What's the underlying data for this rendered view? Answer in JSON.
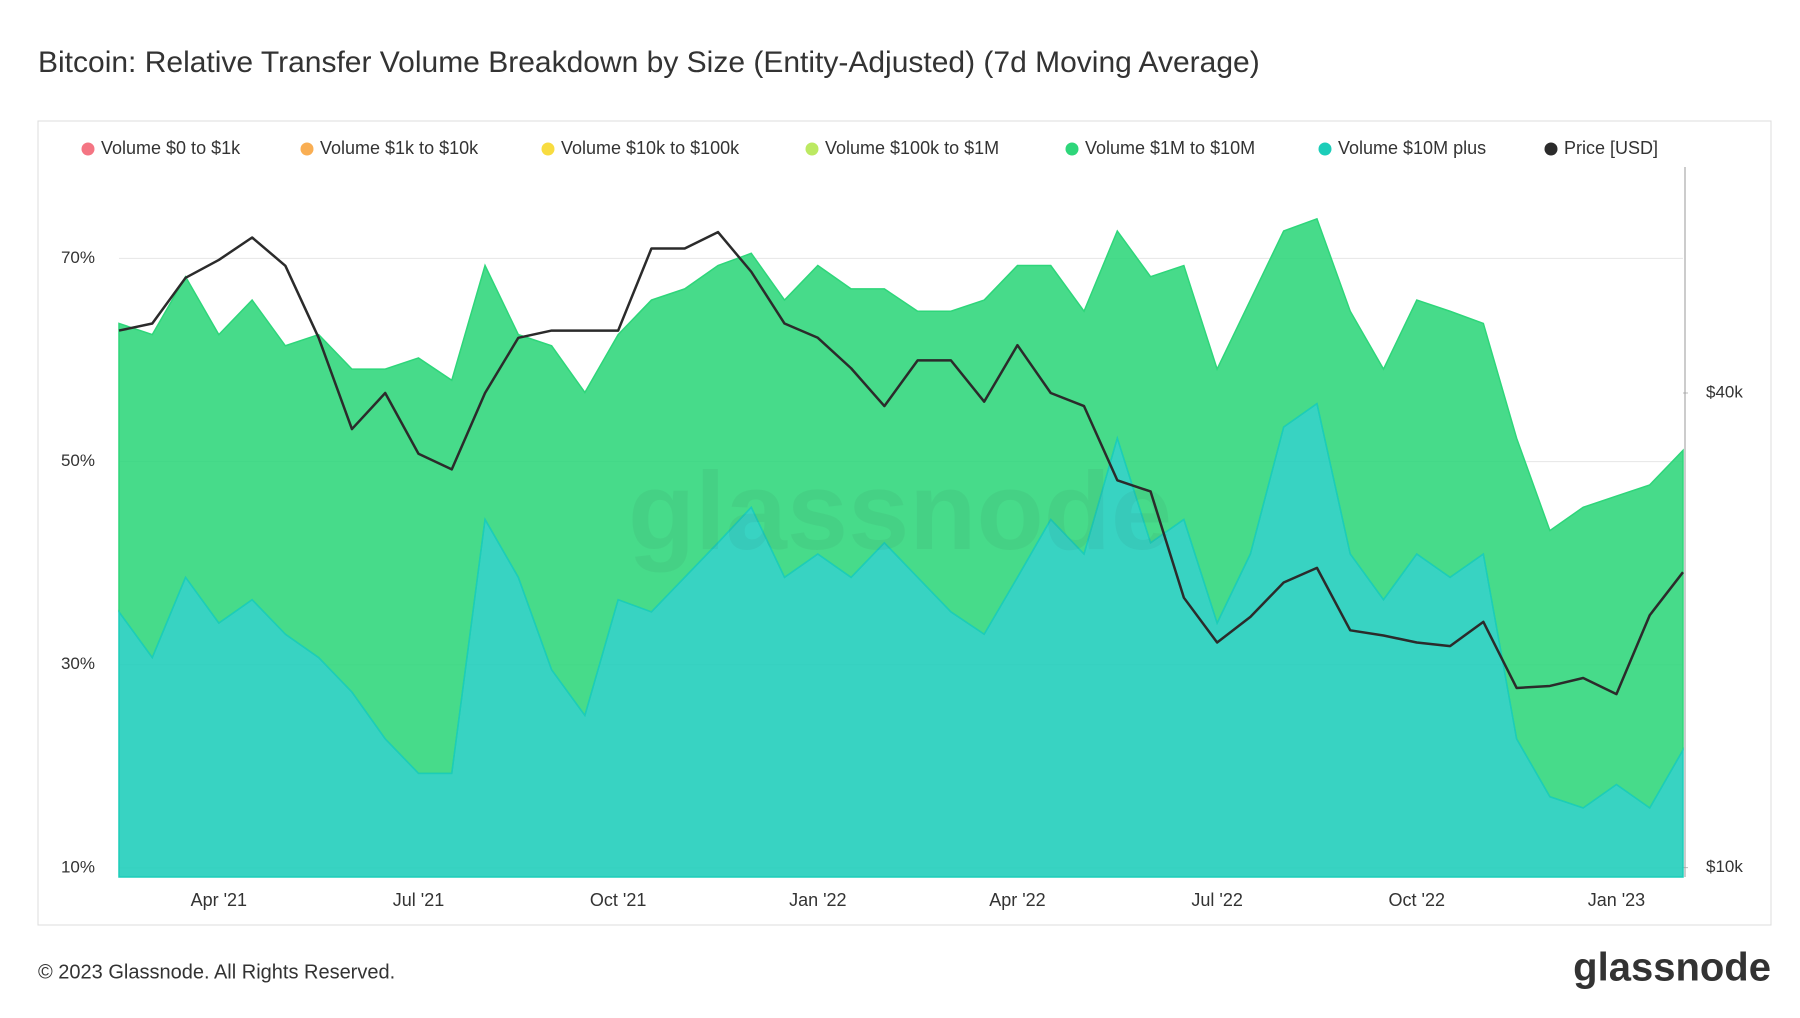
{
  "chart_data": {
    "type": "area",
    "title": "Bitcoin: Relative Transfer Volume Breakdown by Size (Entity-Adjusted) (7d Moving Average)",
    "watermark": "glassnode",
    "footer": "© 2023 Glassnode. All Rights Reserved.",
    "logo": "glassnode",
    "stacked": true,
    "grid": true,
    "y2_log": true,
    "categories": [
      null,
      null,
      null,
      "Apr '21",
      null,
      null,
      null,
      null,
      null,
      "Jul '21",
      null,
      null,
      null,
      null,
      null,
      "Oct '21",
      null,
      null,
      null,
      null,
      null,
      "Jan '22",
      null,
      null,
      null,
      null,
      null,
      "Apr '22",
      null,
      null,
      null,
      null,
      null,
      "Jul '22",
      null,
      null,
      null,
      null,
      null,
      "Oct '22",
      null,
      null,
      null,
      null,
      null,
      "Jan '23",
      null,
      null
    ],
    "ylim": [
      9.1,
      79
    ],
    "yticks": [
      {
        "value": 10,
        "label": "10%"
      },
      {
        "value": 30,
        "label": "30%"
      },
      {
        "value": 50,
        "label": "50%"
      },
      {
        "value": 70,
        "label": "70%"
      }
    ],
    "y2lim": [
      9730,
      77400
    ],
    "y2ticks": [
      {
        "value": 10000,
        "label": "$10k"
      },
      {
        "value": 40000,
        "label": "$40k"
      }
    ],
    "series": [
      {
        "name": "Volume $0 to $1k",
        "color": "#f0475a",
        "visible": false
      },
      {
        "name": "Volume $1k to $10k",
        "color": "#f7931a",
        "visible": false
      },
      {
        "name": "Volume $10k to $100k",
        "color": "#f5d000",
        "visible": false
      },
      {
        "name": "Volume $100k to $1M",
        "color": "#a6e22e",
        "visible": false
      },
      {
        "name": "Volume $1M to $10M",
        "color": "#2ed67a",
        "visible": true,
        "values": [
          28.4,
          31.8,
          29.6,
          28.4,
          29.5,
          28.4,
          31.8,
          31.8,
          36.4,
          40.9,
          38.7,
          25,
          23.9,
          31.9,
          31.8,
          26.1,
          30.7,
          28.4,
          27.3,
          25,
          27.3,
          28.4,
          28.4,
          25,
          26.2,
          29.6,
          32.9,
          30.7,
          25,
          23.9,
          20.4,
          26.2,
          25,
          25,
          25,
          19.3,
          18.2,
          23.9,
          22.7,
          25,
          26.2,
          22.7,
          29.6,
          26.2,
          29.6,
          28.4,
          31.8,
          29.5
        ]
      },
      {
        "name": "Volume $10M plus",
        "color": "#1ccdb9",
        "visible": true,
        "values": [
          35.2,
          30.7,
          38.6,
          34.1,
          36.4,
          33,
          30.7,
          27.3,
          22.7,
          19.3,
          19.3,
          44.3,
          38.6,
          29.5,
          25,
          36.4,
          35.2,
          38.6,
          42,
          45.5,
          38.6,
          40.9,
          38.6,
          42,
          38.6,
          35.2,
          33,
          38.6,
          44.3,
          40.9,
          52.3,
          42,
          44.3,
          34.1,
          40.9,
          53.4,
          55.7,
          40.9,
          36.4,
          40.9,
          38.6,
          40.9,
          22.7,
          17,
          15.9,
          18.2,
          15.9,
          21.6
        ]
      },
      {
        "name": "Price [USD]",
        "color": "#2b2b2b",
        "visible": true,
        "axis": "y2",
        "values": [
          48000,
          49000,
          56000,
          59000,
          63000,
          58000,
          47000,
          36000,
          40000,
          33500,
          32000,
          40000,
          47000,
          48000,
          48000,
          48000,
          61000,
          61000,
          64000,
          57000,
          49000,
          47000,
          43000,
          38500,
          44000,
          44000,
          39000,
          46000,
          40000,
          38500,
          31000,
          30000,
          22000,
          19300,
          20800,
          23000,
          24000,
          20000,
          19700,
          19300,
          19100,
          20500,
          16900,
          17000,
          17400,
          16600,
          20900,
          23700
        ]
      }
    ]
  }
}
